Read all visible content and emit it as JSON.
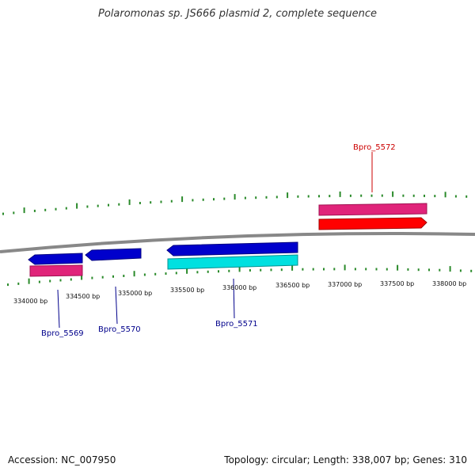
{
  "title": "Polaromonas sp. JS666 plasmid 2, complete sequence",
  "footer": {
    "accession": "Accession: NC_007950",
    "summary": "Topology: circular; Length: 338,007 bp; Genes: 310"
  },
  "ticks": [
    {
      "label": "334000 bp"
    },
    {
      "label": "334500 bp"
    },
    {
      "label": "335000 bp"
    },
    {
      "label": "335500 bp"
    },
    {
      "label": "336000 bp"
    },
    {
      "label": "336500 bp"
    },
    {
      "label": "337000 bp"
    },
    {
      "label": "337500 bp"
    },
    {
      "label": "338000 bp"
    }
  ],
  "genes": [
    {
      "name": "Bpro_5569",
      "strand": "minus",
      "color": "#0000cc"
    },
    {
      "name": "Bpro_5570",
      "strand": "minus",
      "color": "#0000cc"
    },
    {
      "name": "Bpro_5571",
      "strand": "minus",
      "color": "#0000cc"
    },
    {
      "name": "Bpro_5572",
      "strand": "plus",
      "color": "#ff0000"
    }
  ],
  "colors": {
    "backbone": "#888888",
    "ticks": "#2a8a2a",
    "minus_gene": "#0000cc",
    "plus_gene": "#ff0000",
    "rna_feature": "#e0247a",
    "cds_minus": "#00e0e0",
    "gene_label_minus": "#00008b",
    "gene_label_plus": "#cc0000"
  }
}
